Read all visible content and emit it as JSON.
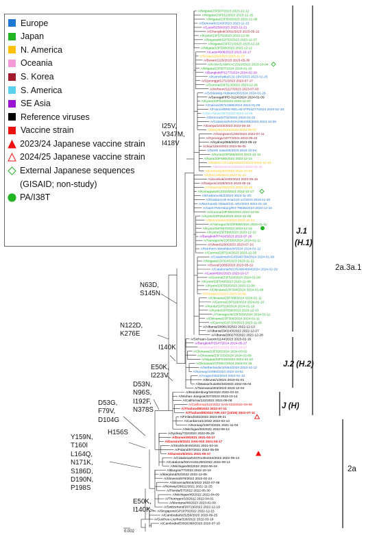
{
  "legend": {
    "items": [
      {
        "label": "Europe",
        "symbol": "square",
        "color": "#1f78d2"
      },
      {
        "label": "Japan",
        "symbol": "square",
        "color": "#22b322"
      },
      {
        "label": "N. America",
        "symbol": "square",
        "color": "#ffc107"
      },
      {
        "label": "Oceania",
        "symbol": "square",
        "color": "#f59ad6"
      },
      {
        "label": "S. Korea",
        "symbol": "square",
        "color": "#a11a2e"
      },
      {
        "label": "S. America",
        "symbol": "square",
        "color": "#5bd0ef"
      },
      {
        "label": "SE Asia",
        "symbol": "square",
        "color": "#9b14d4"
      },
      {
        "label": "Reference viruses",
        "symbol": "square",
        "color": "#000000"
      },
      {
        "label": "Vaccine strain",
        "symbol": "square",
        "color": "#ee1111"
      },
      {
        "label": "2023/24 Japanese vaccine strain",
        "symbol": "triangle-filled",
        "color": "#ee1111"
      },
      {
        "label": "2024/25 Japanese vaccine strain",
        "symbol": "triangle-open",
        "color": "#ee1111"
      },
      {
        "label": "External Japanese sequences",
        "symbol": "diamond-open",
        "color": "#22b322"
      },
      {
        "label": "(GISAID; non-study)",
        "symbol": "none",
        "color": "#000000"
      },
      {
        "label": "PA/I38T",
        "symbol": "circle-filled",
        "color": "#22b322"
      }
    ]
  },
  "mutations": [
    {
      "lines": [
        "I25V,",
        "V347M,",
        "I418V"
      ]
    },
    {
      "lines": [
        "N63D,",
        "S145N"
      ]
    },
    {
      "lines": [
        "N122D,",
        "K276E"
      ]
    },
    {
      "lines": [
        "I140K"
      ]
    },
    {
      "lines": [
        "E50K,",
        "I223V"
      ]
    },
    {
      "lines": [
        "D53N,",
        "N96S,",
        "I192F,",
        "N378S"
      ]
    },
    {
      "lines": [
        "D53G,",
        "F79V,",
        "D104G"
      ]
    },
    {
      "lines": [
        "H156S"
      ]
    },
    {
      "lines": [
        "Y159N,",
        "T160I",
        "L164Q,",
        "N171K,",
        "S186D,",
        "D190N,",
        "P198S"
      ]
    },
    {
      "lines": [
        "E50K,",
        "I140K"
      ]
    }
  ],
  "clades": [
    {
      "label": "J.1"
    },
    {
      "label": "(H.1)"
    },
    {
      "label": "J.2 (H.2)"
    },
    {
      "label": "J (H)"
    },
    {
      "label": "2a.3a.1"
    },
    {
      "label": "2a"
    }
  ],
  "scale": {
    "label": "0.002"
  },
  "tips": [
    {
      "name": "A/Niigata/23F507/2023 2023-12-12",
      "region": "Japan",
      "bold": false
    },
    {
      "name": "A/Niigata/23F511/2023 2023-12-15",
      "region": "Japan",
      "bold": false
    },
    {
      "name": "A/Niigata/23F503/2023 2023-12-08",
      "region": "Japan",
      "bold": false
    },
    {
      "name": "A/Denmark/2243/2023 2023-11-15",
      "region": "Europe",
      "bold": false
    },
    {
      "name": "A/Laos/5259/2023 2023-11-21",
      "region": "SE Asia",
      "bold": false
    },
    {
      "name": "A/Chungbuk/1091/2023 2023-05-22",
      "region": "S. Korea",
      "bold": false
    },
    {
      "name": "A/Kyoto/23F575/2023 2023-12-06",
      "region": "Japan",
      "bold": false
    },
    {
      "name": "A/Nagasaki/22F53/2023 2023-12-27",
      "region": "Japan",
      "bold": false
    },
    {
      "name": "A/Niigata/23F571/2023 2023-12-19",
      "region": "Japan",
      "bold": false
    },
    {
      "name": "A/Niigata/23F508/2023 2023-12-12",
      "region": "Japan",
      "bold": false
    },
    {
      "name": "A/Laos/4606/2023 2023-10-17",
      "region": "SE Asia",
      "bold": false
    },
    {
      "name": "A/Texas/1159/2023 2023-11-07",
      "region": "N. America",
      "bold": false
    },
    {
      "name": "A/Busan/1115/2023 2023-05-30",
      "region": "S. Korea",
      "bold": false
    },
    {
      "name": "A/KANAGAWA/AC2310/2023 2023-10-04",
      "region": "Japan",
      "bold": false
    },
    {
      "name": "A/Niigata/23F507/2024 2024-01-10",
      "region": "Japan",
      "bold": false
    },
    {
      "name": "A/Bangkok/P1277/2024 2024-02-29",
      "region": "SE Asia",
      "bold": false
    },
    {
      "name": "A/Kamchatka/132-19V/2023 2023-12-25",
      "region": "Europe",
      "bold": false
    },
    {
      "name": "A/Gyeonggi/1271/2023 2023-07-17",
      "region": "S. Korea",
      "bold": false
    },
    {
      "name": "A/Gunma/23F513/2023 2023-12-26",
      "region": "Japan",
      "bold": false
    },
    {
      "name": "A/Incheon/1227/2023 2023-07-03",
      "region": "S. Korea",
      "bold": false
    },
    {
      "name": "A/Schleswig-Holstein/30/2024 2024-01-26",
      "region": "Europe",
      "bold": false
    },
    {
      "name": "A/Senegal/IPD-0124/2024 2024-01-09",
      "region": "Reference viruses",
      "bold": false
    },
    {
      "name": "A/Kyoto/23F510/2023 2023-12-07",
      "region": "Japan",
      "bold": false
    },
    {
      "name": "A/Galicia/35741988/2024 2024-01-09",
      "region": "Europe",
      "bold": false
    },
    {
      "name": "A/France/BRE-RELAB-IPP04277/2024 2024-02-28",
      "region": "Europe",
      "bold": false
    },
    {
      "name": "A/Sao Paulo/357/2023 2023-11-08",
      "region": "S. America",
      "bold": false
    },
    {
      "name": "A/Denmark/T02/2024 2024-01-22",
      "region": "Europe",
      "bold": false
    },
    {
      "name": "A/Catalonia/NSVH1984408/2023 2023-10-06",
      "region": "Europe",
      "bold": false
    },
    {
      "name": "A/Daegu/1023/2023 2023-05-15",
      "region": "S. Korea",
      "bold": false
    },
    {
      "name": "A/Maryland/101/2023 2023-09-07",
      "region": "N. America",
      "bold": false
    },
    {
      "name": "A/Gangwon/1246/2023 2023-07-11",
      "region": "S. Korea",
      "bold": false
    },
    {
      "name": "A/Gyeongju/1077/2023 2023-05-22",
      "region": "S. Korea",
      "bold": false
    },
    {
      "name": "A/Sydney/856/2023 2023-09-12",
      "region": "Reference viruses",
      "bold": false
    },
    {
      "name": "A/Jeju/1154/2023 2023-06-05",
      "region": "S. Korea",
      "bold": false
    },
    {
      "name": "A/North Iowa/45/2023 2023-10-04",
      "region": "Europe",
      "bold": false
    },
    {
      "name": "A/Kyoto/23F555/2023 2023-12-12",
      "region": "Japan",
      "bold": false
    },
    {
      "name": "A/Nara/23F556/2023 2023-12-14",
      "region": "Japan",
      "bold": false
    },
    {
      "name": "A/District Of Columbia/37/2023 2023-12-19",
      "region": "N. America",
      "bold": false
    },
    {
      "name": "A/Brisbane/1103/2023 2023-08-28",
      "region": "Oceania",
      "bold": false
    },
    {
      "name": "A/Kentucky/52/2023 2023-10-23",
      "region": "N. America",
      "bold": false
    },
    {
      "name": "A/Ohio/106/2023 2023-11-21",
      "region": "N. America",
      "bold": false
    },
    {
      "name": "A/Jeonbuk/1040/2023 2023-05-15",
      "region": "S. Korea",
      "bold": false
    },
    {
      "name": "A/Daejeon/1028/2023 2023-05-16",
      "region": "S. Korea",
      "bold": false
    },
    {
      "name": "A/Arkansas/30/2023 2023-10-16",
      "region": "N. America",
      "bold": false
    },
    {
      "name": "A/Kanagawa/IC2310/2023 2023-10-17",
      "region": "Japan",
      "bold": false
    },
    {
      "name": "A/Khabarovsk/2/2023 2023-11-20",
      "region": "Europe",
      "bold": false
    },
    {
      "name": "A/Khabarovsk Krai/110-1V/2023 2023-11-20",
      "region": "Europe",
      "bold": false
    },
    {
      "name": "A/Murmansk Oblast/211-16V/2023 2024-01-18",
      "region": "Europe",
      "bold": false
    },
    {
      "name": "A/Saint-Petersburg/RII-78835/2023 2023-12-15",
      "region": "Europe",
      "bold": false
    },
    {
      "name": "A/Gunma/23F305/2023 2023-12-08",
      "region": "Japan",
      "bold": false
    },
    {
      "name": "A/Kyoto/23F554/2023 2023-12-06",
      "region": "Japan",
      "bold": false
    },
    {
      "name": "A/Minnesota/24/2023 2023-10-24",
      "region": "N. America",
      "bold": false
    },
    {
      "name": "A/Yamaguchi/23F506/2024 2024-01-11",
      "region": "Japan",
      "bold": false
    },
    {
      "name": "A/Kyoto/23F557/2023 2023-12-15",
      "region": "Japan",
      "bold": false
    },
    {
      "name": "A/Kyoto/23F558/2023 2023-12-22",
      "region": "Japan",
      "bold": false
    },
    {
      "name": "A/Bangkok/P7414/2023 2023-07-26",
      "region": "SE Asia",
      "bold": false
    },
    {
      "name": "A/Yamaguchi/23F508/2024 2024-01-11",
      "region": "Japan",
      "bold": false
    },
    {
      "name": "A/Ulsan/1250/2023 2023-07-10",
      "region": "S. Korea",
      "bold": false
    },
    {
      "name": "A/Northern-Westfalen/4/2024 2024-01-12",
      "region": "Europe",
      "bold": false
    },
    {
      "name": "A/Gunma/23F514/2023 2023-12-25",
      "region": "Japan",
      "bold": false
    },
    {
      "name": "A/Catalonia/NSJ/5940784/2024 2024-01-09",
      "region": "Europe",
      "bold": false
    },
    {
      "name": "A/Niigata/22F324/2023 2023-11-21",
      "region": "Japan",
      "bold": false
    },
    {
      "name": "A/Seoul/1085/2023 2023-05-22",
      "region": "S. Korea",
      "bold": false
    },
    {
      "name": "A/Catalonia/NSJ/S4904894/2024 2024-02-29",
      "region": "Europe",
      "bold": false
    },
    {
      "name": "A/Laos/4591/2023 2023-10-17",
      "region": "SE Asia",
      "bold": false
    },
    {
      "name": "A/Gunma/23F524/2024 2024-01-09",
      "region": "Japan",
      "bold": false
    },
    {
      "name": "A/Kyoto/23F549/2023 2023-12-08",
      "region": "Japan",
      "bold": false
    },
    {
      "name": "A/Kyoto/23F553/2023 2023-12-08",
      "region": "Japan",
      "bold": false
    },
    {
      "name": "A/Okinawa/23F304/2024 2024-01-09",
      "region": "Japan",
      "bold": false
    },
    {
      "name": "A/Florida/22/2023 2023-10-09",
      "region": "N. America",
      "bold": false
    },
    {
      "name": "A/Okinawa/23F308/2024 2024-01-11",
      "region": "Japan",
      "bold": false
    },
    {
      "name": "A/Gunma/23F519/2024 2024-01-10",
      "region": "Japan",
      "bold": false
    },
    {
      "name": "A/Kyoto/23F519/2024 2024-01-10",
      "region": "Japan",
      "bold": false
    },
    {
      "name": "A/Kyoto/23F559/2023 2023-12-13",
      "region": "Japan",
      "bold": false
    },
    {
      "name": "A/Yamaguchi/23F509/2024 2024-01-11",
      "region": "Japan",
      "bold": false
    },
    {
      "name": "A/Okinawa/23F306/2024 2024-01-11",
      "region": "Japan",
      "bold": false
    },
    {
      "name": "A/Gunma/22F330/2023 2023-11-26",
      "region": "Japan",
      "bold": false
    },
    {
      "name": "A/Albania/289813/2022 2022-12-13",
      "region": "Reference viruses",
      "bold": false
    },
    {
      "name": "A/Albania/290243/2022 2022-12-27",
      "region": "Reference viruses",
      "bold": false
    },
    {
      "name": "A/Albania/290270/2022 2022-12-28",
      "region": "Reference viruses",
      "bold": false
    },
    {
      "name": "A/Sichuan-Gaoxin/1144/2023 2023-02-16",
      "region": "Reference viruses",
      "bold": false
    },
    {
      "name": "A/Bangkok/P2547/2024 2024-05-27",
      "region": "SE Asia",
      "bold": false
    },
    {
      "name": "A/Victoria/2571/2023 2023-09-07",
      "region": "Oceania",
      "bold": false
    },
    {
      "name": "A/Okinawa/23F326/2024 2024-03-02",
      "region": "Japan",
      "bold": false
    },
    {
      "name": "A/Okinawa/23F333/2024 2024-02-09",
      "region": "Japan",
      "bold": false
    },
    {
      "name": "A/Niigata/23F516/2024 2024-01-10",
      "region": "Japan",
      "bold": false
    },
    {
      "name": "A/Okinawa/23T0067/2024 2024-01-15",
      "region": "Japan",
      "bold": false
    },
    {
      "name": "A/Netherlands/10554/2023 2023-10-12",
      "region": "Europe",
      "bold": false
    },
    {
      "name": "A/Norway/10093/2023 2023-10-02",
      "region": "Europe",
      "bold": false
    },
    {
      "name": "A/Aragon/252/2024 2024-01-10",
      "region": "Europe",
      "bold": false
    },
    {
      "name": "A/Brunei/1/2024 2024-01-01",
      "region": "Reference viruses",
      "bold": false
    },
    {
      "name": "A/Massachusetts/18/2022 2022-06-04",
      "region": "Reference viruses",
      "bold": false
    },
    {
      "name": "A/Tasmania/303/2023 2023-10-04",
      "region": "Reference viruses",
      "bold": false
    },
    {
      "name": "A/Brandenburg/15/2022 2022-03-10",
      "region": "Reference viruses",
      "bold": false
    },
    {
      "name": "A/Wuhan-Jiangxia/327/2023 2023-10-14",
      "region": "Reference viruses",
      "bold": false
    },
    {
      "name": "A/California/122/2022 2022-09-08",
      "region": "Reference viruses",
      "bold": false
    },
    {
      "name": "A/California/122/2022 SAN-022/2022-09-08",
      "region": "Vaccine strain",
      "bold": false
    },
    {
      "name": "A/Thailand/8/2022 2022-07-11",
      "region": "Vaccine strain",
      "bold": true
    },
    {
      "name": "A/Thailand/8/2022 IVR-237 (23/26) 2022-07-11",
      "region": "Vaccine strain",
      "bold": true
    },
    {
      "name": "A/Finland/402/2023 2023-08-21",
      "region": "Reference viruses",
      "bold": false
    },
    {
      "name": "A/Canberra/1/2022 2022-03-14",
      "region": "Reference viruses",
      "bold": false
    },
    {
      "name": "A/Norway/24873/2021 2021-11-04",
      "region": "Reference viruses",
      "bold": false
    },
    {
      "name": "A/Michigan/83/2022 2022-09-12",
      "region": "Reference viruses",
      "bold": false
    },
    {
      "name": "A/Sydney/732/2022 2022-05-29",
      "region": "Reference viruses",
      "bold": false
    },
    {
      "name": "A/Darwin/9/2021 2021-04-17",
      "region": "Vaccine strain",
      "bold": true
    },
    {
      "name": "A/Darwin/9/2021 SAN-010 2021-04-17",
      "region": "Vaccine strain",
      "bold": true
    },
    {
      "name": "A/Stockholm/5/2021 2021-04-16",
      "region": "Reference viruses",
      "bold": false
    },
    {
      "name": "A/Poland/97/2022 2022-05-09",
      "region": "Reference viruses",
      "bold": false
    },
    {
      "name": "A/Darwin/6/2021 2021-05-17",
      "region": "Vaccine strain",
      "bold": true
    },
    {
      "name": "A/Catalonia/NSVH1304434/2022 2022-09-13",
      "region": "Reference viruses",
      "bold": false
    },
    {
      "name": "A/Catalonia/NSVH151200/2022 2022-09-14",
      "region": "Reference viruses",
      "bold": false
    },
    {
      "name": "A/Michigan/60/2022 2022-06-18",
      "region": "Reference viruses",
      "bold": false
    },
    {
      "name": "A/Burgos/77/2022 2022-10-19",
      "region": "Reference viruses",
      "bold": false
    },
    {
      "name": "A/Maryland/02/2022 2022-12-05",
      "region": "Reference viruses",
      "bold": false
    },
    {
      "name": "A/Slovenia/870/2022 2022-02-24",
      "region": "Reference viruses",
      "bold": false
    },
    {
      "name": "A/Slovenia/5916/2022 2022-07-08",
      "region": "Reference viruses",
      "bold": false
    },
    {
      "name": "A/Norway/29611/2021 2021-11-25",
      "region": "Reference viruses",
      "bold": false
    },
    {
      "name": "A/Florida/57/2022 2022-05-30",
      "region": "Reference viruses",
      "bold": false
    },
    {
      "name": "A/Michigan/45/2022 2022-04-09",
      "region": "Reference viruses",
      "bold": false
    },
    {
      "name": "A/Thuringen/10/2022 2022-04-01",
      "region": "Reference viruses",
      "bold": false
    },
    {
      "name": "A/Montana/48/2023 2023-01-09",
      "region": "Reference viruses",
      "bold": false
    },
    {
      "name": "A/Switzerland/28719/2022 2022-12-19",
      "region": "Reference viruses",
      "bold": false
    },
    {
      "name": "A/Singapore/GP1876/2022 2022-12-15",
      "region": "Reference viruses",
      "bold": false
    },
    {
      "name": "A/Cambodia/925256/2020 2020-09-25",
      "region": "Reference viruses",
      "bold": false
    },
    {
      "name": "A/Guizhou-Liuzhia/326/2022 2022-03-18",
      "region": "Reference viruses",
      "bold": false
    },
    {
      "name": "A/Cambodia/E0826360/2020 2020-07-16",
      "region": "Reference viruses",
      "bold": false
    }
  ]
}
